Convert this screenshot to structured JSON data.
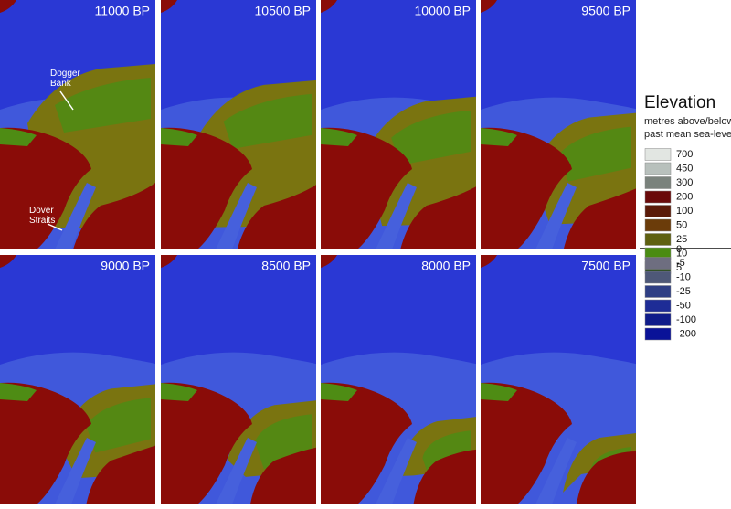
{
  "panels": [
    {
      "label": "11000 BP",
      "annotations": [
        "Dogger Bank",
        "Dover Straits"
      ]
    },
    {
      "label": "10500 BP"
    },
    {
      "label": "10000 BP"
    },
    {
      "label": "9500 BP"
    },
    {
      "label": "9000 BP"
    },
    {
      "label": "8500 BP"
    },
    {
      "label": "8000 BP"
    },
    {
      "label": "7500 BP"
    }
  ],
  "legend": {
    "title": "Elevation",
    "subtitle": [
      "metres above/below",
      "past mean sea-level"
    ],
    "above": [
      {
        "value": 700,
        "color": "#e2e6e2"
      },
      {
        "value": 450,
        "color": "#b8c0bc"
      },
      {
        "value": 300,
        "color": "#7a827c"
      },
      {
        "value": 200,
        "color": "#6a0a0a"
      },
      {
        "value": 100,
        "color": "#5a1a08"
      },
      {
        "value": 50,
        "color": "#6b3c0a"
      },
      {
        "value": 25,
        "color": "#5e6010"
      },
      {
        "value": 10,
        "color": "#4a8c12"
      },
      {
        "value": 5,
        "color": "#163e08"
      }
    ],
    "zero": 0,
    "below": [
      {
        "value": -5,
        "color": "#6e6e80"
      },
      {
        "value": -10,
        "color": "#4e5878"
      },
      {
        "value": -25,
        "color": "#2e3e84"
      },
      {
        "value": -50,
        "color": "#1e2c96"
      },
      {
        "value": -100,
        "color": "#101c8a"
      },
      {
        "value": -200,
        "color": "#0a1298"
      }
    ]
  }
}
